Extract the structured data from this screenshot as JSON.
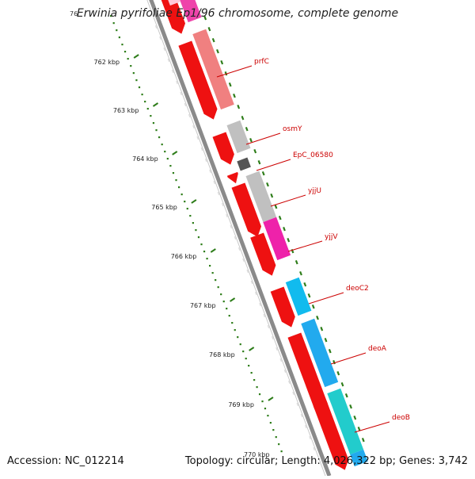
{
  "map": {
    "title": "Erwinia pyrifoliae Ep1/96 chromosome, complete genome",
    "truncated_top_label": "76",
    "accession": "Accession: NC_012214",
    "summary": "Topology: circular; Length: 4,026,322 bp; Genes: 3,742",
    "kbp_labels": [
      "762 kbp",
      "763 kbp",
      "764 kbp",
      "765 kbp",
      "766 kbp",
      "767 kbp",
      "768 kbp",
      "769 kbp"
    ],
    "bottom_partial_label": "770 kbp",
    "colors": {
      "backbone": "#8a8a8a",
      "gene_forward": "#ee1111",
      "scale_tick": "#2e7d1a",
      "label": "#cc0000"
    },
    "genes": [
      {
        "name": "prfC"
      },
      {
        "name": "osmY"
      },
      {
        "name": "EpC_06580"
      },
      {
        "name": "yjjU"
      },
      {
        "name": "yjjV"
      },
      {
        "name": "deoC2"
      },
      {
        "name": "deoA"
      },
      {
        "name": "deoB"
      }
    ]
  }
}
